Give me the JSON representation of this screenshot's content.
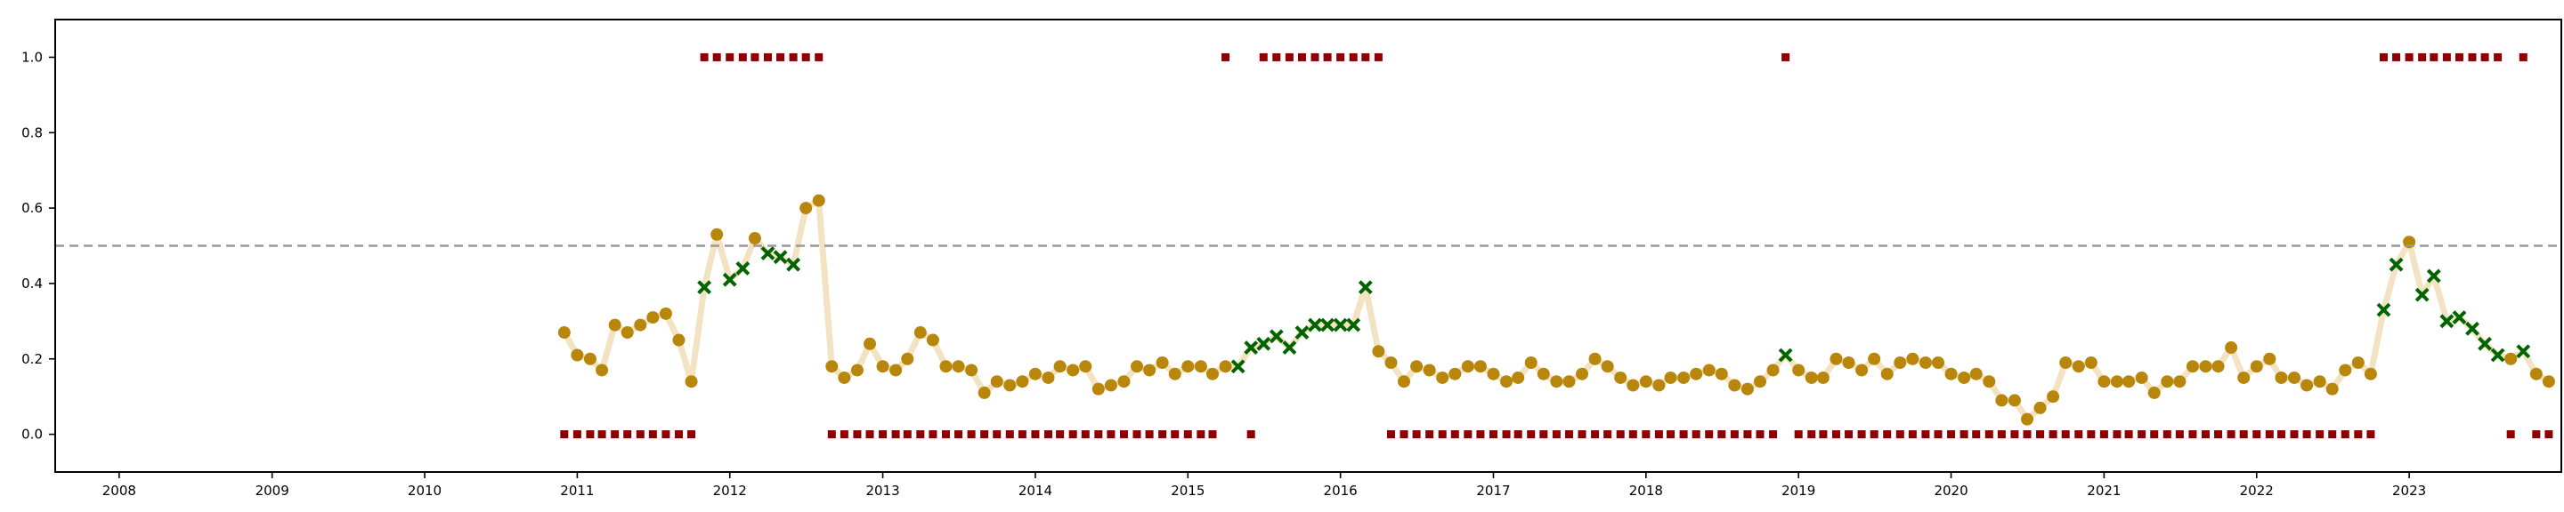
{
  "chart_data": {
    "type": "scatter",
    "title": "",
    "xlabel": "",
    "ylabel": "",
    "xlim": [
      "2007-08-01",
      "2023-12-31"
    ],
    "ylim": [
      -0.1,
      1.1
    ],
    "x_ticks": [
      "2008",
      "2009",
      "2010",
      "2011",
      "2012",
      "2013",
      "2014",
      "2015",
      "2016",
      "2017",
      "2018",
      "2019",
      "2020",
      "2021",
      "2022",
      "2023"
    ],
    "y_ticks": [
      0.0,
      0.2,
      0.4,
      0.6,
      0.8,
      1.0
    ],
    "y_tick_labels": [
      "0.0",
      "0.2",
      "0.4",
      "0.6",
      "0.8",
      "1.0"
    ],
    "threshold": 0.5,
    "grid": false,
    "legend": "none",
    "colors": {
      "score_line": "#f3e3c3",
      "score_point": "#b8860b",
      "flagged_marker": "#006400",
      "binary_marker": "#8b0000",
      "threshold_line": "#999999",
      "axes": "#000000"
    },
    "series": [
      {
        "marker": "circle-and-x",
        "start": "2010-12",
        "values": [
          0.27,
          0.21,
          0.2,
          0.17,
          0.29,
          0.27,
          0.29,
          0.31,
          0.32,
          0.25,
          0.14,
          0.39,
          0.53,
          0.41,
          0.44,
          0.52,
          0.48,
          0.47,
          0.45,
          0.6,
          0.62,
          0.18,
          0.15,
          0.17,
          0.24,
          0.18,
          0.17,
          0.2,
          0.27,
          0.25,
          0.18,
          0.18,
          0.17,
          0.11,
          0.14,
          0.13,
          0.14,
          0.16,
          0.15,
          0.18,
          0.17,
          0.18,
          0.12,
          0.13,
          0.14,
          0.18,
          0.17,
          0.19,
          0.16,
          0.18,
          0.18,
          0.16,
          0.18,
          0.18,
          0.23,
          0.24,
          0.26,
          0.23,
          0.27,
          0.29,
          0.29,
          0.29,
          0.29,
          0.39,
          0.22,
          0.19,
          0.14,
          0.18,
          0.17,
          0.15,
          0.16,
          0.18,
          0.18,
          0.16,
          0.14,
          0.15,
          0.19,
          0.16,
          0.14,
          0.14,
          0.16,
          0.2,
          0.18,
          0.15,
          0.13,
          0.14,
          0.13,
          0.15,
          0.15,
          0.16,
          0.17,
          0.16,
          0.13,
          0.12,
          0.14,
          0.17,
          0.21,
          0.17,
          0.15,
          0.15,
          0.2,
          0.19,
          0.17,
          0.2,
          0.16,
          0.19,
          0.2,
          0.19,
          0.19,
          0.16,
          0.15,
          0.16,
          0.14,
          0.09,
          0.09,
          0.04,
          0.07,
          0.1,
          0.19,
          0.18,
          0.19,
          0.14,
          0.14,
          0.14,
          0.15,
          0.11,
          0.14,
          0.14,
          0.18,
          0.18,
          0.18,
          0.23,
          0.15,
          0.18,
          0.2,
          0.15,
          0.15,
          0.13,
          0.14,
          0.12,
          0.17,
          0.19,
          0.16,
          0.33,
          0.45,
          0.51,
          0.37,
          0.42,
          0.3,
          0.31,
          0.28,
          0.24,
          0.21,
          0.2,
          0.22,
          0.16,
          0.14
        ],
        "flagged": [
          0,
          0,
          0,
          0,
          0,
          0,
          0,
          0,
          0,
          0,
          0,
          1,
          0,
          1,
          1,
          0,
          1,
          1,
          1,
          0,
          0,
          0,
          0,
          0,
          0,
          0,
          0,
          0,
          0,
          0,
          0,
          0,
          0,
          0,
          0,
          0,
          0,
          0,
          0,
          0,
          0,
          0,
          0,
          0,
          0,
          0,
          0,
          0,
          0,
          0,
          0,
          0,
          0,
          1,
          1,
          1,
          1,
          1,
          1,
          1,
          1,
          1,
          1,
          1,
          0,
          0,
          0,
          0,
          0,
          0,
          0,
          0,
          0,
          0,
          0,
          0,
          0,
          0,
          0,
          0,
          0,
          0,
          0,
          0,
          0,
          0,
          0,
          0,
          0,
          0,
          0,
          0,
          0,
          0,
          0,
          0,
          1,
          0,
          0,
          0,
          0,
          0,
          0,
          0,
          0,
          0,
          0,
          0,
          0,
          0,
          0,
          0,
          0,
          0,
          0,
          0,
          0,
          0,
          0,
          0,
          0,
          0,
          0,
          0,
          0,
          0,
          0,
          0,
          0,
          0,
          0,
          0,
          0,
          0,
          0,
          0,
          0,
          0,
          0,
          0,
          0,
          0,
          0,
          1,
          1,
          0,
          1,
          1,
          1,
          1,
          1,
          1,
          1,
          0,
          1,
          0,
          0
        ]
      },
      {
        "marker": "square",
        "start": "2010-12",
        "values": [
          0,
          0,
          0,
          0,
          0,
          0,
          0,
          0,
          0,
          0,
          0,
          1,
          1,
          1,
          1,
          1,
          1,
          1,
          1,
          1,
          1,
          0,
          0,
          0,
          0,
          0,
          0,
          0,
          0,
          0,
          0,
          0,
          0,
          0,
          0,
          0,
          0,
          0,
          0,
          0,
          0,
          0,
          0,
          0,
          0,
          0,
          0,
          0,
          0,
          0,
          0,
          0,
          1,
          0,
          0,
          1,
          1,
          1,
          1,
          1,
          1,
          1,
          1,
          1,
          1,
          0,
          0,
          0,
          0,
          0,
          0,
          0,
          0,
          0,
          0,
          0,
          0,
          0,
          0,
          0,
          0,
          0,
          0,
          0,
          0,
          0,
          0,
          0,
          0,
          0,
          0,
          0,
          0,
          0,
          0,
          0,
          1,
          0,
          0,
          0,
          0,
          0,
          0,
          0,
          0,
          0,
          0,
          0,
          0,
          0,
          0,
          0,
          0,
          0,
          0,
          0,
          0,
          0,
          0,
          0,
          0,
          0,
          0,
          0,
          0,
          0,
          0,
          0,
          0,
          0,
          0,
          0,
          0,
          0,
          0,
          0,
          0,
          0,
          0,
          0,
          0,
          0,
          0,
          1,
          1,
          1,
          1,
          1,
          1,
          1,
          1,
          1,
          1,
          0,
          1,
          0,
          0
        ],
        "present": [
          1,
          1,
          1,
          1,
          1,
          1,
          1,
          1,
          1,
          1,
          1,
          1,
          1,
          1,
          1,
          1,
          1,
          1,
          1,
          1,
          1,
          1,
          1,
          1,
          1,
          1,
          1,
          1,
          1,
          1,
          1,
          1,
          1,
          1,
          1,
          1,
          1,
          1,
          1,
          1,
          1,
          1,
          1,
          1,
          1,
          1,
          1,
          1,
          1,
          1,
          1,
          1,
          1,
          0,
          1,
          1,
          1,
          1,
          1,
          1,
          1,
          1,
          1,
          1,
          1,
          1,
          1,
          1,
          1,
          1,
          1,
          1,
          1,
          1,
          1,
          1,
          1,
          1,
          1,
          1,
          1,
          1,
          1,
          1,
          1,
          1,
          1,
          1,
          1,
          1,
          1,
          1,
          1,
          1,
          1,
          1,
          1,
          1,
          1,
          1,
          1,
          1,
          1,
          1,
          1,
          1,
          1,
          1,
          1,
          1,
          1,
          1,
          1,
          1,
          1,
          1,
          1,
          1,
          1,
          1,
          1,
          1,
          1,
          1,
          1,
          1,
          1,
          1,
          1,
          1,
          1,
          1,
          1,
          1,
          1,
          1,
          1,
          1,
          1,
          1,
          1,
          1,
          1,
          1,
          1,
          1,
          1,
          1,
          1,
          1,
          1,
          1,
          1,
          1,
          1,
          1,
          1
        ]
      }
    ]
  }
}
